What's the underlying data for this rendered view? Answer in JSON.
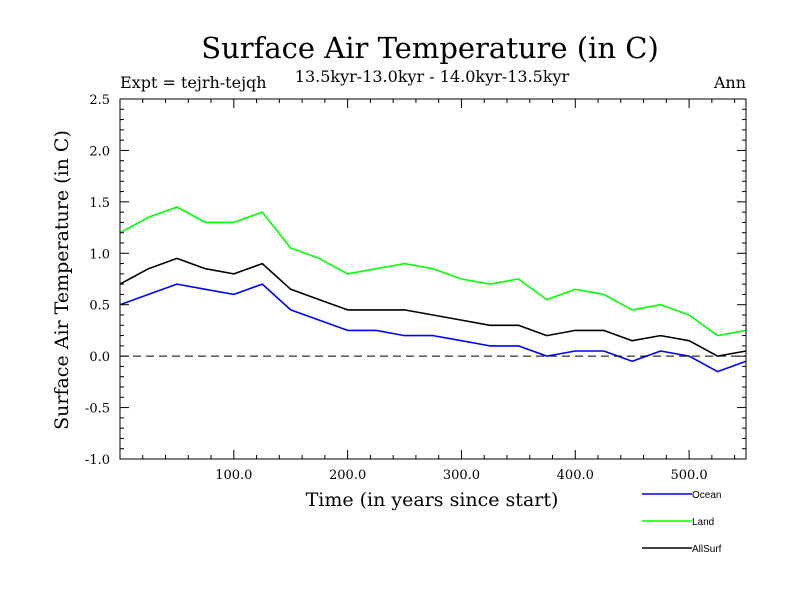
{
  "chart_data": {
    "type": "line",
    "title": "Surface Air Temperature (in C)",
    "subtitle": "13.5kyr-13.0kyr - 14.0kyr-13.5kyr",
    "experiment_label": "Expt = tejrh-tejqh",
    "period_label": "Ann",
    "xlabel": "Time (in years since start)",
    "ylabel": "Surface Air Temperature (in C)",
    "xlim": [
      0,
      550
    ],
    "ylim": [
      -1.0,
      2.5
    ],
    "x_ticks": [
      100,
      200,
      300,
      400,
      500
    ],
    "x_tick_labels": [
      "100.0",
      "200.0",
      "300.0",
      "400.0",
      "500.0"
    ],
    "y_ticks": [
      -1.0,
      -0.5,
      0.0,
      0.5,
      1.0,
      1.5,
      2.0,
      2.5
    ],
    "y_tick_labels": [
      "-1.0",
      "-0.5",
      "0.0",
      "0.5",
      "1.0",
      "1.5",
      "2.0",
      "2.5"
    ],
    "reference_line": 0.0,
    "legend_position": "bottom-right",
    "series": [
      {
        "name": "Ocean",
        "color": "#0000ff",
        "x": [
          0,
          25,
          50,
          75,
          100,
          125,
          150,
          175,
          200,
          225,
          250,
          275,
          300,
          325,
          350,
          375,
          400,
          425,
          450,
          475,
          500,
          525,
          550
        ],
        "values": [
          0.5,
          0.6,
          0.7,
          0.65,
          0.6,
          0.7,
          0.45,
          0.35,
          0.25,
          0.25,
          0.2,
          0.2,
          0.15,
          0.1,
          0.1,
          0.0,
          0.05,
          0.05,
          -0.05,
          0.05,
          0.0,
          -0.15,
          -0.05
        ]
      },
      {
        "name": "Land",
        "color": "#00ff00",
        "x": [
          0,
          25,
          50,
          75,
          100,
          125,
          150,
          175,
          200,
          225,
          250,
          275,
          300,
          325,
          350,
          375,
          400,
          425,
          450,
          475,
          500,
          525,
          550
        ],
        "values": [
          1.2,
          1.35,
          1.45,
          1.3,
          1.3,
          1.4,
          1.05,
          0.95,
          0.8,
          0.85,
          0.9,
          0.85,
          0.75,
          0.7,
          0.75,
          0.55,
          0.65,
          0.6,
          0.45,
          0.5,
          0.4,
          0.2,
          0.25
        ]
      },
      {
        "name": "AllSurf",
        "color": "#000000",
        "x": [
          0,
          25,
          50,
          75,
          100,
          125,
          150,
          175,
          200,
          225,
          250,
          275,
          300,
          325,
          350,
          375,
          400,
          425,
          450,
          475,
          500,
          525,
          550
        ],
        "values": [
          0.7,
          0.85,
          0.95,
          0.85,
          0.8,
          0.9,
          0.65,
          0.55,
          0.45,
          0.45,
          0.45,
          0.4,
          0.35,
          0.3,
          0.3,
          0.2,
          0.25,
          0.25,
          0.15,
          0.2,
          0.15,
          0.0,
          0.05
        ]
      }
    ]
  }
}
